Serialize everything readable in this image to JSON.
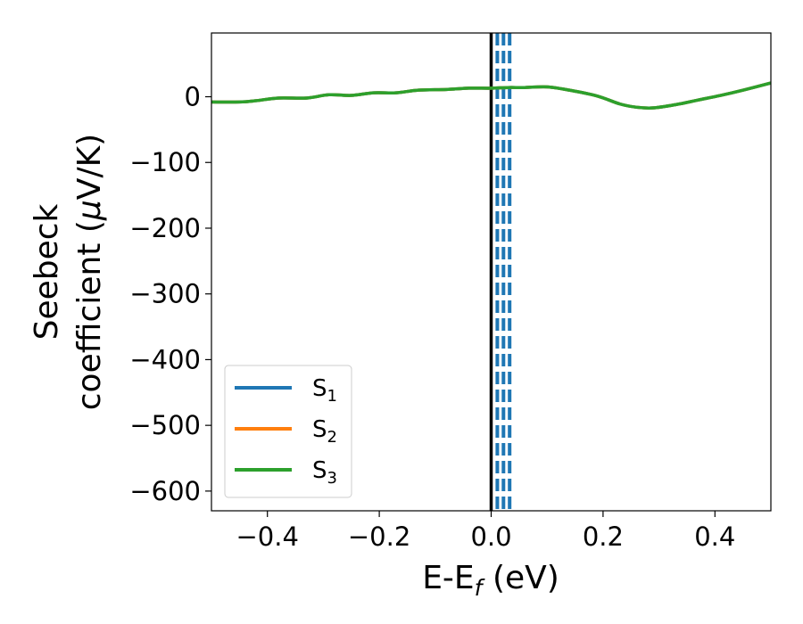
{
  "chart_data": {
    "type": "line",
    "xlabel": "E-E",
    "xlabel_sub": "f",
    "xlabel_unit": "(eV)",
    "ylabel_line1": "Seebeck",
    "ylabel_line2_prefix": "coefficient  (",
    "ylabel_mu": "μ",
    "ylabel_line2_suffix": "V/K)",
    "xlim": [
      -0.5,
      0.5
    ],
    "ylim": [
      -630,
      97
    ],
    "xticks": [
      -0.4,
      -0.2,
      0.0,
      0.2,
      0.4
    ],
    "xtick_labels": [
      "−0.4",
      "−0.2",
      "0.0",
      "0.2",
      "0.4"
    ],
    "yticks": [
      0,
      -100,
      -200,
      -300,
      -400,
      -500,
      -600
    ],
    "ytick_labels": [
      "0",
      "−100",
      "−200",
      "−300",
      "−400",
      "−500",
      "−600"
    ],
    "grid": false,
    "legend_placement": "lower-left",
    "x": [
      -0.5,
      -0.45,
      -0.42,
      -0.38,
      -0.33,
      -0.29,
      -0.25,
      -0.21,
      -0.17,
      -0.13,
      -0.08,
      -0.04,
      0.0,
      0.03,
      0.06,
      0.1,
      0.14,
      0.19,
      0.23,
      0.26,
      0.29,
      0.33,
      0.37,
      0.41,
      0.45,
      0.5
    ],
    "series": [
      {
        "name_base": "S",
        "name_sub": "1",
        "color": "#1f77b4",
        "values": [
          -8,
          -8,
          -6,
          -2,
          -2,
          3,
          2,
          6,
          6,
          10,
          11,
          13,
          13,
          14,
          14,
          15,
          10,
          1,
          -11,
          -16,
          -17,
          -12,
          -5,
          2,
          10,
          21
        ]
      },
      {
        "name_base": "S",
        "name_sub": "2",
        "color": "#ff7f0e",
        "values": [
          -8,
          -8,
          -6,
          -2,
          -2,
          3,
          2,
          6,
          6,
          10,
          11,
          13,
          13,
          14,
          14,
          15,
          10,
          1,
          -11,
          -16,
          -17,
          -12,
          -5,
          2,
          10,
          21
        ]
      },
      {
        "name_base": "S",
        "name_sub": "3",
        "color": "#2ca02c",
        "values": [
          -8,
          -8,
          -6,
          -2,
          -2,
          3,
          2,
          6,
          6,
          10,
          11,
          13,
          13,
          14,
          14,
          15,
          10,
          1,
          -11,
          -16,
          -17,
          -12,
          -5,
          2,
          10,
          21
        ]
      }
    ],
    "vertical_lines": [
      {
        "x": 0.0,
        "style": "solid",
        "color": "#000000"
      },
      {
        "x": 0.011,
        "style": "dashed",
        "color": "#1f77b4"
      },
      {
        "x": 0.022,
        "style": "dashed",
        "color": "#1f77b4"
      },
      {
        "x": 0.033,
        "style": "dashed",
        "color": "#1f77b4"
      }
    ]
  }
}
